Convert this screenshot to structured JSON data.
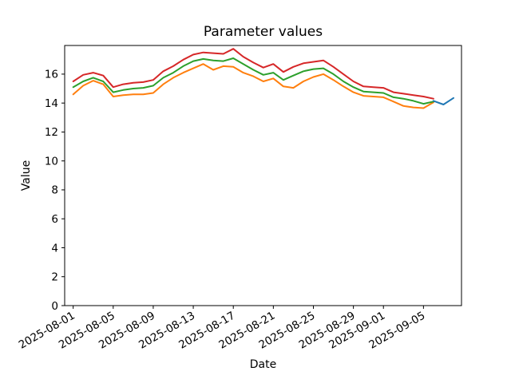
{
  "window": {
    "background": "#ffffff"
  },
  "chart": {
    "title": "Parameter values",
    "xlabel": "Date",
    "ylabel": "Value"
  },
  "chart_data": {
    "type": "line",
    "title": "Parameter values",
    "xlabel": "Date",
    "ylabel": "Value",
    "grid": false,
    "legend": "none",
    "axis_color": "#000000",
    "background_color": "#ffffff",
    "ylim": [
      0,
      17.98
    ],
    "xlim_days": [
      -0.85,
      38.8
    ],
    "y_ticks": [
      0,
      2,
      4,
      6,
      8,
      10,
      12,
      14,
      16
    ],
    "x_ticks": [
      "2025-08-01",
      "2025-08-05",
      "2025-08-09",
      "2025-08-13",
      "2025-08-17",
      "2025-08-21",
      "2025-08-25",
      "2025-08-29",
      "2025-09-01",
      "2025-09-05"
    ],
    "dates": [
      "2025-08-01",
      "2025-08-02",
      "2025-08-03",
      "2025-08-04",
      "2025-08-05",
      "2025-08-06",
      "2025-08-07",
      "2025-08-08",
      "2025-08-09",
      "2025-08-10",
      "2025-08-11",
      "2025-08-12",
      "2025-08-13",
      "2025-08-14",
      "2025-08-15",
      "2025-08-16",
      "2025-08-17",
      "2025-08-18",
      "2025-08-19",
      "2025-08-20",
      "2025-08-21",
      "2025-08-22",
      "2025-08-23",
      "2025-08-24",
      "2025-08-25",
      "2025-08-26",
      "2025-08-27",
      "2025-08-28",
      "2025-08-29",
      "2025-08-30",
      "2025-08-31",
      "2025-09-01",
      "2025-09-02",
      "2025-09-03",
      "2025-09-04",
      "2025-09-05",
      "2025-09-06"
    ],
    "series": [
      {
        "name": "orange-line",
        "color": "#ff7f0e",
        "values": [
          14.6,
          15.2,
          15.55,
          15.3,
          14.45,
          14.55,
          14.6,
          14.6,
          14.7,
          15.3,
          15.75,
          16.1,
          16.4,
          16.7,
          16.3,
          16.55,
          16.5,
          16.1,
          15.85,
          15.5,
          15.7,
          15.15,
          15.05,
          15.5,
          15.8,
          16.0,
          15.6,
          15.15,
          14.75,
          14.5,
          14.45,
          14.4,
          14.1,
          13.8,
          13.7,
          13.65,
          14.05
        ]
      },
      {
        "name": "green-line",
        "color": "#2ca02c",
        "values": [
          15.1,
          15.5,
          15.75,
          15.5,
          14.75,
          14.9,
          15.0,
          15.05,
          15.2,
          15.75,
          16.1,
          16.55,
          16.9,
          17.05,
          16.95,
          16.9,
          17.1,
          16.7,
          16.3,
          15.95,
          16.1,
          15.6,
          15.9,
          16.2,
          16.35,
          16.4,
          16.0,
          15.5,
          15.1,
          14.8,
          14.75,
          14.7,
          14.4,
          14.3,
          14.15,
          13.95,
          14.1
        ]
      },
      {
        "name": "red-line",
        "color": "#d62728",
        "values": [
          15.5,
          15.95,
          16.1,
          15.9,
          15.1,
          15.3,
          15.4,
          15.45,
          15.6,
          16.2,
          16.55,
          17.0,
          17.35,
          17.5,
          17.45,
          17.4,
          17.75,
          17.2,
          16.8,
          16.45,
          16.7,
          16.15,
          16.5,
          16.75,
          16.85,
          16.95,
          16.5,
          16.0,
          15.5,
          15.15,
          15.1,
          15.05,
          14.75,
          14.65,
          14.55,
          14.45,
          14.3
        ]
      },
      {
        "name": "blue-line",
        "color": "#1f77b4",
        "dates": [
          "2025-09-06",
          "2025-09-07",
          "2025-09-08"
        ],
        "values": [
          14.15,
          13.9,
          14.35
        ]
      }
    ]
  }
}
